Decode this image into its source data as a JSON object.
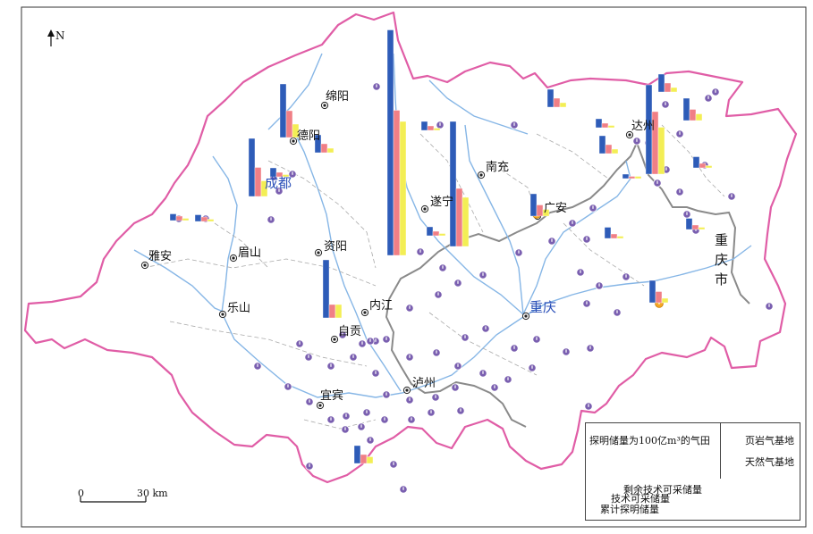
{
  "north_label": "N",
  "scale": {
    "zero_label": "0",
    "distance_label": "30 km"
  },
  "colors": {
    "cumulative": "#2e5cb8",
    "technical": "#f07f86",
    "remaining": "#f3ee55",
    "province_border": "#e05da6",
    "river": "#86b6e6",
    "shale_fill": "#f6a623",
    "gas_fill": "#7a5fb0",
    "chongqing_border": "#8a8a8a"
  },
  "cities": [
    {
      "id": "mianyang",
      "name": "绵阳"
    },
    {
      "id": "deyang",
      "name": "德阳"
    },
    {
      "id": "chengdu",
      "name": "成都"
    },
    {
      "id": "suining",
      "name": "遂宁"
    },
    {
      "id": "nanchong",
      "name": "南充"
    },
    {
      "id": "dazhou",
      "name": "达州"
    },
    {
      "id": "guangan",
      "name": "广安"
    },
    {
      "id": "yaan",
      "name": "雅安"
    },
    {
      "id": "meishan",
      "name": "眉山"
    },
    {
      "id": "ziyang",
      "name": "资阳"
    },
    {
      "id": "leshan",
      "name": "乐山"
    },
    {
      "id": "neijiang",
      "name": "内江"
    },
    {
      "id": "zigong",
      "name": "自贡"
    },
    {
      "id": "chongqing",
      "name": "重庆"
    },
    {
      "id": "luzhou",
      "name": "泸州"
    },
    {
      "id": "yibin",
      "name": "宜宾"
    },
    {
      "id": "chongqing_shi",
      "name": "重庆市"
    }
  ],
  "legend": {
    "title": "探明储量为100亿m³的气田",
    "shale_base": "页岩气基地",
    "gas_base": "天然气基地",
    "remaining_label": "剩余技术可采储量",
    "technical_label": "技术可采储量",
    "cumulative_label": "累计探明储量",
    "base_icon_glyph": "!"
  },
  "gas_fields_100e8m3": [
    {
      "cumulative": 2.6,
      "technical": 1.3,
      "remaining": 0.7
    },
    {
      "cumulative": 2.4,
      "technical": 1.2,
      "remaining": 0.6
    },
    {
      "cumulative": 0.8,
      "technical": 0.4,
      "remaining": 0.2
    },
    {
      "cumulative": 0.4,
      "technical": 0.2,
      "remaining": 0.1
    },
    {
      "cumulative": 10.1,
      "technical": 6.5,
      "remaining": 6.0
    },
    {
      "cumulative": 0.4,
      "technical": 0.2,
      "remaining": 0.1
    },
    {
      "cumulative": 5.6,
      "technical": 2.6,
      "remaining": 2.2
    },
    {
      "cumulative": 1.0,
      "technical": 0.5,
      "remaining": 0.3
    },
    {
      "cumulative": 0.8,
      "technical": 0.4,
      "remaining": 0.2
    },
    {
      "cumulative": 0.4,
      "technical": 0.2,
      "remaining": 0.1
    },
    {
      "cumulative": 0.8,
      "technical": 0.4,
      "remaining": 0.2
    },
    {
      "cumulative": 4.0,
      "technical": 2.8,
      "remaining": 2.1
    },
    {
      "cumulative": 1.0,
      "technical": 0.5,
      "remaining": 0.3
    },
    {
      "cumulative": 0.8,
      "technical": 0.4,
      "remaining": 0.2
    },
    {
      "cumulative": 0.2,
      "technical": 0.1,
      "remaining": 0.1
    },
    {
      "cumulative": 1.0,
      "technical": 0.5,
      "remaining": 0.2
    },
    {
      "cumulative": 0.4,
      "technical": 0.2,
      "remaining": 0.1
    },
    {
      "cumulative": 0.3,
      "technical": 0.2,
      "remaining": 0.1
    },
    {
      "cumulative": 0.3,
      "technical": 0.2,
      "remaining": 0.1
    },
    {
      "cumulative": 2.6,
      "technical": 0.6,
      "remaining": 0.6
    },
    {
      "cumulative": 0.8,
      "technical": 0.4,
      "remaining": 0.3
    },
    {
      "cumulative": 0.5,
      "technical": 0.2,
      "remaining": 0.1
    },
    {
      "cumulative": 0.5,
      "technical": 0.2,
      "remaining": 0.1
    },
    {
      "cumulative": 0.5,
      "technical": 0.2,
      "remaining": 0.1
    }
  ]
}
